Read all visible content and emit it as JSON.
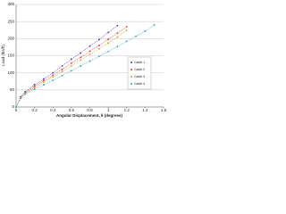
{
  "chart_data": {
    "type": "line",
    "x_label": "Angular Displacement, θ (degrees)",
    "y_label": "Load (lbs/ft)",
    "x": [
      0,
      0.05,
      0.1,
      0.2,
      0.3,
      0.4,
      0.5,
      0.6,
      0.7,
      0.8,
      0.9,
      1.0,
      1.1,
      1.2,
      1.3,
      1.4,
      1.5
    ],
    "series": [
      {
        "name": "Cable 1",
        "color": "#5b2d9e",
        "values": [
          0,
          30,
          45,
          65,
          82,
          100,
          120,
          140,
          158,
          178,
          197,
          218,
          238,
          null,
          null,
          null,
          null
        ]
      },
      {
        "name": "Cable 2",
        "color": "#d9342b",
        "values": [
          0,
          28,
          42,
          60,
          77,
          93,
          110,
          128,
          145,
          163,
          180,
          198,
          216,
          235,
          null,
          null,
          null
        ]
      },
      {
        "name": "Cable 3",
        "color": "#c8a22a",
        "values": [
          0,
          26,
          40,
          57,
          73,
          88,
          104,
          120,
          137,
          154,
          170,
          187,
          205,
          224,
          null,
          null,
          null
        ]
      },
      {
        "name": "Cable 4",
        "color": "#2aa6b5",
        "values": [
          0,
          25,
          38,
          52,
          65,
          78,
          92,
          106,
          120,
          134,
          148,
          162,
          177,
          192,
          207,
          222,
          240
        ]
      }
    ],
    "xlim": [
      0,
      1.6
    ],
    "xticks": [
      0,
      0.2,
      0.4,
      0.6,
      0.8,
      1,
      1.2,
      1.4,
      1.6
    ],
    "ylim": [
      0,
      300
    ],
    "yticks": [
      0,
      50,
      100,
      150,
      200,
      250,
      300
    ],
    "grid": true,
    "legend": "right"
  }
}
